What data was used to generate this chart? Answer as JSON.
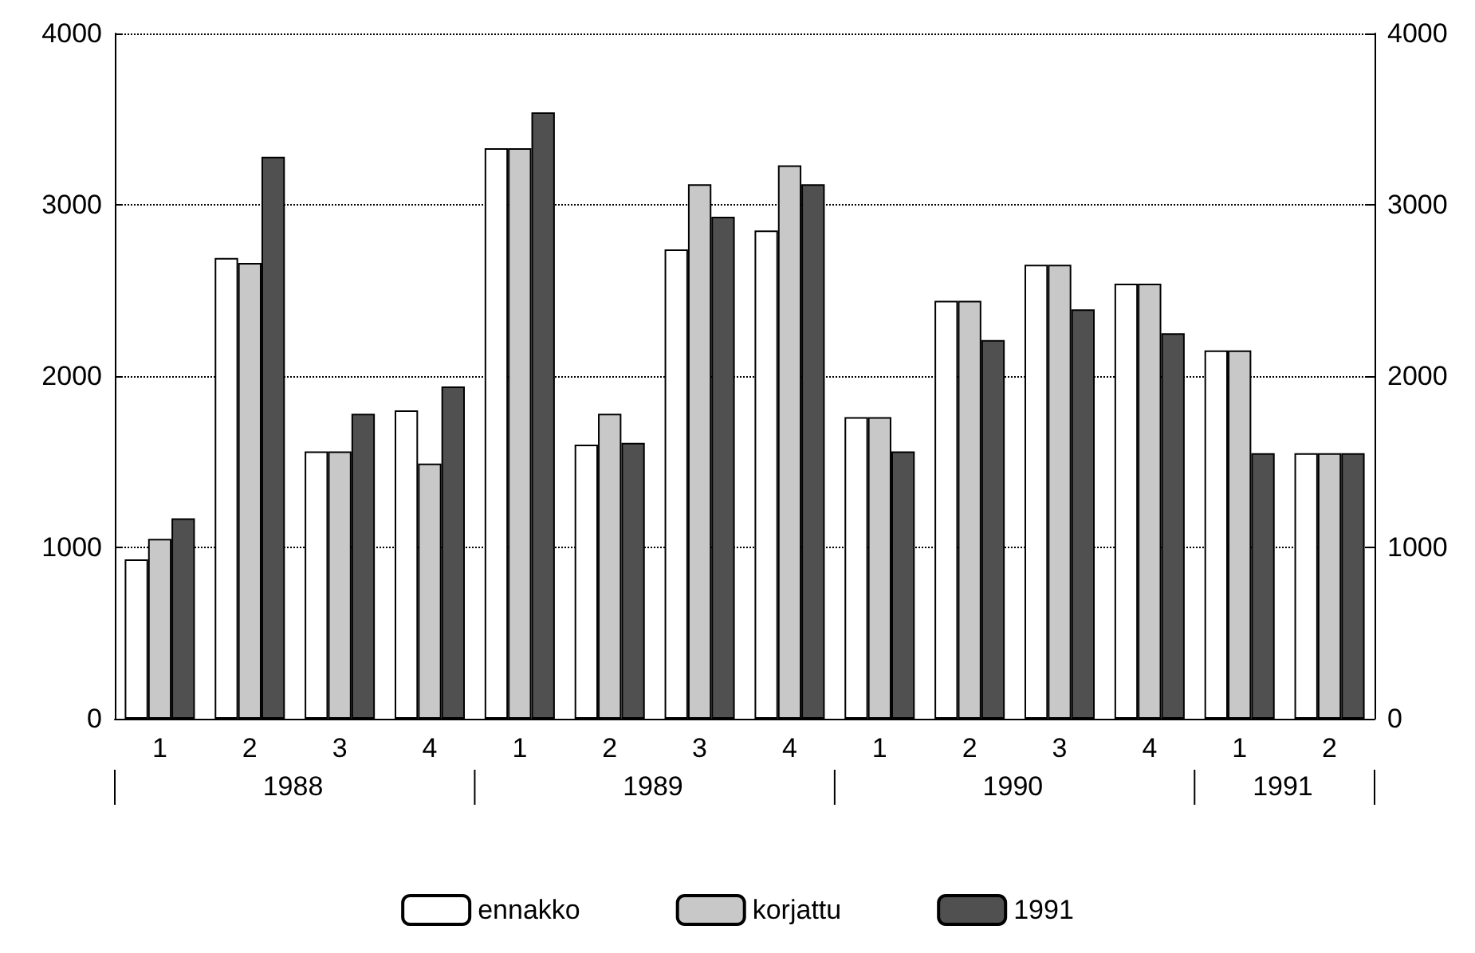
{
  "chart_data": {
    "type": "bar",
    "categories": [
      "1",
      "2",
      "3",
      "4",
      "1",
      "2",
      "3",
      "4",
      "1",
      "2",
      "3",
      "4",
      "1",
      "2"
    ],
    "series": [
      {
        "name": "ennakko",
        "color": "#ffffff",
        "values": [
          930,
          2690,
          1560,
          1800,
          3330,
          1600,
          2740,
          2850,
          1760,
          2440,
          2650,
          2540,
          2150,
          1550
        ]
      },
      {
        "name": "korjattu",
        "color": "#c8c8c8",
        "values": [
          1050,
          2660,
          1560,
          1490,
          3330,
          1780,
          3120,
          3230,
          1760,
          2440,
          2650,
          2540,
          2150,
          1550
        ]
      },
      {
        "name": "1991",
        "color": "#505050",
        "values": [
          1170,
          3280,
          1780,
          1940,
          3540,
          1610,
          2930,
          3120,
          1560,
          2210,
          2390,
          2250,
          1550,
          1550
        ]
      }
    ],
    "annotations": [
      "1988",
      "1989",
      "1990",
      "1991"
    ],
    "ylim": [
      0,
      4000
    ],
    "yticks": [
      0,
      1000,
      2000,
      3000,
      4000
    ],
    "y2lim": [
      0,
      4000
    ],
    "y2ticks": [
      0,
      1000,
      2000,
      3000,
      4000
    ],
    "grid": "y",
    "legend": "bottom"
  }
}
